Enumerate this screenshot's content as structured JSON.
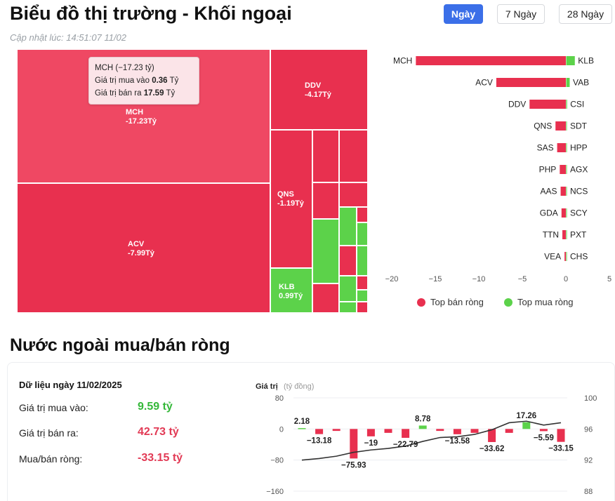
{
  "header": {
    "title": "Biểu đồ thị trường - Khối ngoại",
    "update_label": "Cập nhật lúc:",
    "update_time": "14:51:07 11/02"
  },
  "tabs": [
    {
      "label": "Ngày",
      "active": true
    },
    {
      "label": "7 Ngày",
      "active": false
    },
    {
      "label": "28 Ngày",
      "active": false
    }
  ],
  "treemap": {
    "labels": [
      {
        "code": "MCH",
        "value": "-17.23Tỷ"
      },
      {
        "code": "ACV",
        "value": "-7.99Tỷ"
      },
      {
        "code": "DDV",
        "value": "-4.17Tỷ"
      },
      {
        "code": "QNS",
        "value": "-1.19Tỷ"
      },
      {
        "code": "KLB",
        "value": "0.99Tỷ"
      }
    ],
    "tooltip": {
      "title": "MCH (−17.23 tỷ)",
      "buy_label": "Giá trị mua vào",
      "buy_value": "0.36",
      "buy_unit": "Tỷ",
      "sell_label": "Giá trị bán ra",
      "sell_value": "17.59",
      "sell_unit": "Tỷ"
    }
  },
  "section2": {
    "title": "Nước ngoài mua/bán ròng",
    "date_label": "Dữ liệu ngày 11/02/2025",
    "rows": [
      {
        "label": "Giá trị mua vào:",
        "value": "9.59 tỷ",
        "tone": "green"
      },
      {
        "label": "Giá trị bán ra:",
        "value": "42.73 tỷ",
        "tone": "red"
      },
      {
        "label": "Mua/bán ròng:",
        "value": "-33.15 tỷ",
        "tone": "red"
      }
    ]
  },
  "colors": {
    "sell": "#e8304f",
    "buy": "#5cd24a",
    "accent": "#3b6fe8",
    "line": "#333333"
  },
  "chart_data": [
    {
      "type": "bar",
      "orientation": "horizontal",
      "sell_series": {
        "name": "Top bán ròng",
        "categories": [
          "MCH",
          "ACV",
          "DDV",
          "QNS",
          "SAS",
          "PHP",
          "AAS",
          "GDA",
          "TTN",
          "VEA"
        ],
        "values": [
          -17.23,
          -7.99,
          -4.17,
          -1.19,
          -1.0,
          -0.7,
          -0.6,
          -0.5,
          -0.4,
          -0.15
        ]
      },
      "buy_series": {
        "name": "Top mua ròng",
        "categories": [
          "KLB",
          "VAB",
          "CSI",
          "SDT",
          "HPP",
          "AGX",
          "NCS",
          "SCY",
          "PXT",
          "CHS"
        ],
        "values": [
          0.99,
          0.4,
          0.1,
          0.05,
          0.04,
          0.03,
          0.03,
          0.02,
          0.02,
          0.01
        ]
      },
      "xticks": [
        "−20",
        "−15",
        "−10",
        "−5",
        "0",
        "5"
      ],
      "xlim": [
        -20,
        5
      ],
      "legend": "bottom"
    },
    {
      "type": "bar",
      "ylabel": "Giá trị",
      "ylabel_unit": "(tỷ đồng)",
      "ylim": [
        -160,
        80
      ],
      "yticks": [
        "80",
        "0",
        "−80",
        "−160"
      ],
      "y2lim": [
        88,
        100
      ],
      "y2ticks": [
        "100",
        "96",
        "92",
        "88"
      ],
      "values": [
        2.18,
        -13.18,
        -5.0,
        -75.93,
        -19,
        -10,
        -22.79,
        8.78,
        -5.0,
        -13.58,
        -10,
        -33.62,
        -10,
        17.26,
        -5.59,
        -33.15
      ],
      "data_labels": [
        {
          "index": 0,
          "text": "2.18"
        },
        {
          "index": 1,
          "text": "−13.18"
        },
        {
          "index": 3,
          "text": "−75.93"
        },
        {
          "index": 4,
          "text": "−19"
        },
        {
          "index": 6,
          "text": "−22.79"
        },
        {
          "index": 7,
          "text": "8.78"
        },
        {
          "index": 9,
          "text": "−13.58"
        },
        {
          "index": 11,
          "text": "−33.62"
        },
        {
          "index": 13,
          "text": "17.26"
        },
        {
          "index": 14,
          "text": "−5.59"
        },
        {
          "index": 15,
          "text": "−33.15"
        }
      ],
      "line_values": [
        92.0,
        92.2,
        92.5,
        93.0,
        93.3,
        93.5,
        93.8,
        94.4,
        94.9,
        95.0,
        95.3,
        95.9,
        96.8,
        97.0,
        96.5,
        96.8
      ]
    }
  ]
}
